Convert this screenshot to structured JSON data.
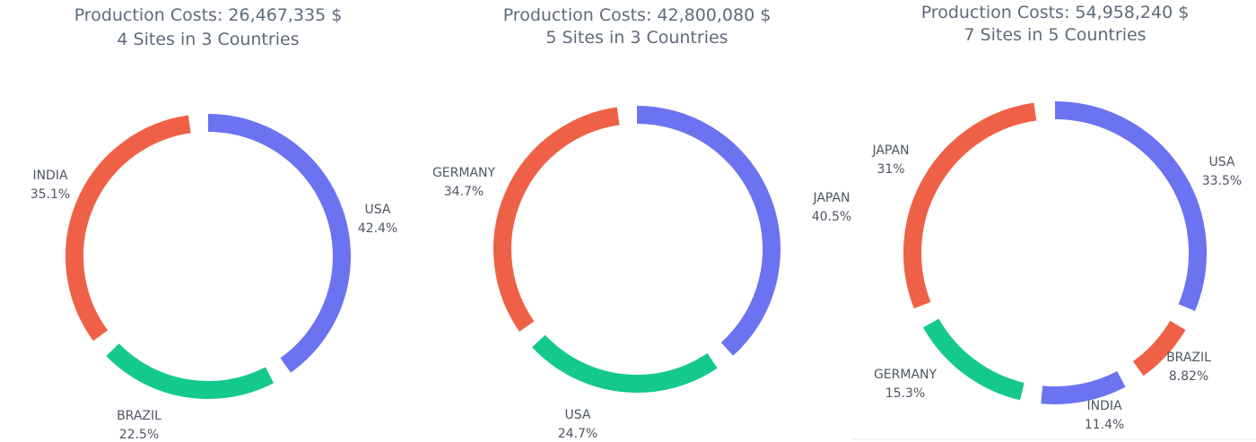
{
  "colors": {
    "blue": "#6c73f0",
    "orange": "#ef6147",
    "green": "#14c98d"
  },
  "chart_data": [
    {
      "type": "pie",
      "title": "Production Costs: 26,467,335 $",
      "subtitle": "4 Sites in 3 Countries",
      "slices": [
        {
          "label": "USA",
          "percent_label": "42.4%",
          "value": 42.4,
          "color": "#6c73f0"
        },
        {
          "label": "BRAZIL",
          "percent_label": "22.5%",
          "value": 22.5,
          "color": "#14c98d"
        },
        {
          "label": "INDIA",
          "percent_label": "35.1%",
          "value": 35.1,
          "color": "#ef6147"
        }
      ]
    },
    {
      "type": "pie",
      "title": "Production Costs: 42,800,080 $",
      "subtitle": "5 Sites in 3 Countries",
      "slices": [
        {
          "label": "JAPAN",
          "percent_label": "40.5%",
          "value": 40.5,
          "color": "#6c73f0"
        },
        {
          "label": "USA",
          "percent_label": "24.7%",
          "value": 24.7,
          "color": "#14c98d"
        },
        {
          "label": "GERMANY",
          "percent_label": "34.7%",
          "value": 34.7,
          "color": "#ef6147"
        }
      ]
    },
    {
      "type": "pie",
      "title": "Production Costs: 54,958,240 $",
      "subtitle": "7 Sites in 5 Countries",
      "slices": [
        {
          "label": "USA",
          "percent_label": "33.5%",
          "value": 33.5,
          "color": "#6c73f0"
        },
        {
          "label": "BRAZIL",
          "percent_label": "8.82%",
          "value": 8.82,
          "color": "#ef6147"
        },
        {
          "label": "INDIA",
          "percent_label": "11.4%",
          "value": 11.4,
          "color": "#6c73f0"
        },
        {
          "label": "GERMANY",
          "percent_label": "15.3%",
          "value": 15.3,
          "color": "#14c98d"
        },
        {
          "label": "JAPAN",
          "percent_label": "31%",
          "value": 31.0,
          "color": "#ef6147"
        }
      ]
    }
  ]
}
